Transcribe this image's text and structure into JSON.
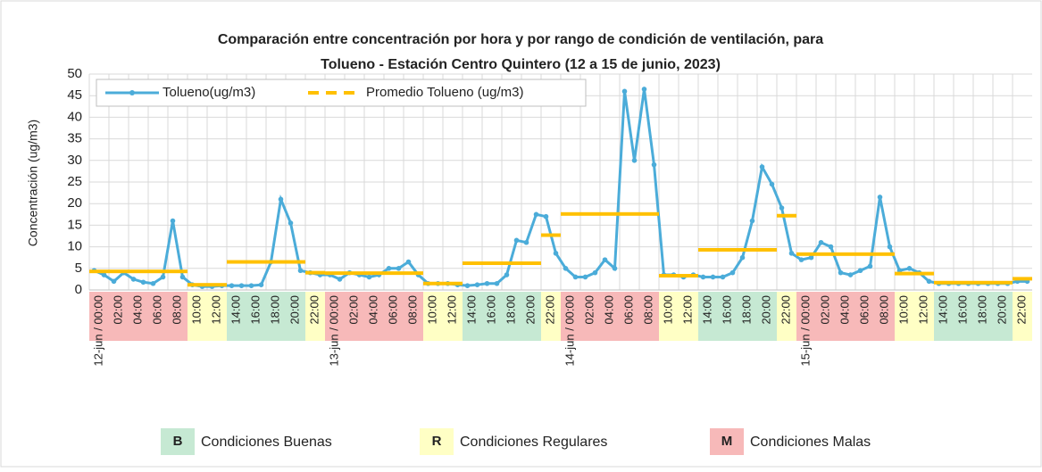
{
  "chart_data": {
    "type": "line",
    "title": [
      "Comparación entre concentración por hora y por rango de condición de ventilación, para",
      "Tolueno - Estación Centro Quintero (12 a 15 de junio, 2023)"
    ],
    "y_label": "Concentración (ug/m3)",
    "ylim": [
      0,
      50
    ],
    "yticks": [
      0,
      5,
      10,
      15,
      20,
      25,
      30,
      35,
      40,
      45,
      50
    ],
    "grid": true,
    "legend": "top-left",
    "categories": [
      "12-jun / 00:00",
      null,
      "02:00",
      null,
      "04:00",
      null,
      "06:00",
      null,
      "08:00",
      null,
      "10:00",
      null,
      "12:00",
      null,
      "14:00",
      null,
      "16:00",
      null,
      "18:00",
      null,
      "20:00",
      null,
      "22:00",
      null,
      "13-jun / 00:00",
      null,
      "02:00",
      null,
      "04:00",
      null,
      "06:00",
      null,
      "08:00",
      null,
      "10:00",
      null,
      "12:00",
      null,
      "14:00",
      null,
      "16:00",
      null,
      "18:00",
      null,
      "20:00",
      null,
      "22:00",
      null,
      "14-jun / 00:00",
      null,
      "02:00",
      null,
      "04:00",
      null,
      "06:00",
      null,
      "08:00",
      null,
      "10:00",
      null,
      "12:00",
      null,
      "14:00",
      null,
      "16:00",
      null,
      "18:00",
      null,
      "20:00",
      null,
      "22:00",
      null,
      "15-jun / 00:00",
      null,
      "02:00",
      null,
      "04:00",
      null,
      "06:00",
      null,
      "08:00",
      null,
      "10:00",
      null,
      "12:00",
      null,
      "14:00",
      null,
      "16:00",
      null,
      "18:00",
      null,
      "20:00",
      null,
      "22:00",
      null
    ],
    "series": [
      {
        "name": "Tolueno(ug/m3)",
        "color": "#4bacd9",
        "values": [
          4.5,
          3.5,
          2,
          4,
          2.5,
          1.8,
          1.5,
          3,
          16,
          3,
          1.2,
          0.8,
          0.8,
          1,
          1,
          1,
          1,
          1.2,
          6.5,
          21,
          15.5,
          4.5,
          4,
          3.5,
          3.5,
          2.5,
          4,
          3.5,
          3,
          3.5,
          5,
          5,
          6.5,
          3.5,
          1.5,
          1.5,
          1.5,
          1.2,
          1,
          1.2,
          1.5,
          1.5,
          3.5,
          11.5,
          11,
          17.5,
          17,
          8.5,
          5,
          3,
          3,
          4,
          7,
          5,
          46,
          30,
          46.5,
          29,
          3.5,
          3.5,
          3,
          3.5,
          3,
          3,
          3,
          4,
          7.5,
          16,
          28.5,
          24.5,
          19,
          8.5,
          7,
          7.5,
          11,
          10,
          4,
          3.5,
          4.5,
          5.5,
          21.5,
          10,
          4.5,
          5,
          4,
          2,
          1.5,
          1.5,
          1.5,
          1.5,
          1.5,
          1.5,
          1.5,
          1.5,
          2,
          2
        ]
      },
      {
        "name": "Promedio Tolueno (ug/m3)",
        "color": "#ffc000",
        "values": [
          4.3,
          4.3,
          4.3,
          4.3,
          4.3,
          4.3,
          4.3,
          4.3,
          4.3,
          4.3,
          1.2,
          1.2,
          1.2,
          1.2,
          6.5,
          6.5,
          6.5,
          6.5,
          6.5,
          6.5,
          6.5,
          6.5,
          4,
          4,
          3.9,
          3.9,
          3.9,
          3.9,
          3.9,
          3.9,
          3.9,
          3.9,
          3.9,
          3.9,
          1.5,
          1.5,
          1.5,
          1.5,
          6.2,
          6.2,
          6.2,
          6.2,
          6.2,
          6.2,
          6.2,
          6.2,
          12.7,
          12.7,
          17.6,
          17.6,
          17.6,
          17.6,
          17.6,
          17.6,
          17.6,
          17.6,
          17.6,
          17.6,
          3.3,
          3.3,
          3.3,
          3.3,
          9.3,
          9.3,
          9.3,
          9.3,
          9.3,
          9.3,
          9.3,
          9.3,
          17.2,
          17.2,
          8.3,
          8.3,
          8.3,
          8.3,
          8.3,
          8.3,
          8.3,
          8.3,
          8.3,
          8.3,
          3.8,
          3.8,
          3.8,
          3.8,
          1.7,
          1.7,
          1.7,
          1.7,
          1.7,
          1.7,
          1.7,
          1.7,
          2.6,
          2.6
        ]
      }
    ],
    "bands": [
      "M",
      "M",
      "M",
      "M",
      "M",
      "R",
      "R",
      "B",
      "B",
      "B",
      "B",
      "R",
      "M",
      "M",
      "M",
      "M",
      "M",
      "R",
      "R",
      "B",
      "B",
      "B",
      "B",
      "R",
      "M",
      "M",
      "M",
      "M",
      "M",
      "R",
      "R",
      "B",
      "B",
      "B",
      "B",
      "R",
      "M",
      "M",
      "M",
      "M",
      "M",
      "R",
      "R",
      "B",
      "B",
      "B",
      "B",
      "R"
    ],
    "conditions": [
      {
        "code": "B",
        "label": "Condiciones Buenas",
        "color": "#c6e9d3"
      },
      {
        "code": "R",
        "label": "Condiciones Regulares",
        "color": "#ffffc5"
      },
      {
        "code": "M",
        "label": "Condiciones Malas",
        "color": "#f7b9b9"
      }
    ]
  }
}
